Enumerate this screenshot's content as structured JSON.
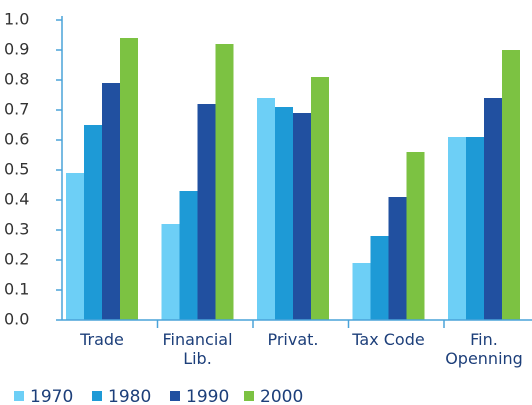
{
  "chart_data": {
    "type": "bar",
    "categories": [
      "Trade",
      "Financial Lib.",
      "Privat.",
      "Tax Code",
      "Fin. Openning"
    ],
    "series": [
      {
        "name": "1970",
        "color": "#6dcff6",
        "values": [
          0.49,
          0.32,
          0.74,
          0.19,
          0.61
        ]
      },
      {
        "name": "1980",
        "color": "#1e9ad6",
        "values": [
          0.65,
          0.43,
          0.71,
          0.28,
          0.61
        ]
      },
      {
        "name": "1990",
        "color": "#2150a0",
        "values": [
          0.79,
          0.72,
          0.69,
          0.41,
          0.74
        ]
      },
      {
        "name": "2000",
        "color": "#7cc242",
        "values": [
          0.94,
          0.92,
          0.81,
          0.56,
          0.9
        ]
      }
    ],
    "ylim": [
      0,
      1
    ],
    "yticks": [
      {
        "value": 0,
        "label": "0.0"
      },
      0.1,
      0.2,
      0.3,
      0.4,
      0.5,
      0.6,
      0.7,
      0.8,
      0.9,
      {
        "value": 1,
        "label": "1.0"
      }
    ],
    "grid": false,
    "legend": "bottom"
  }
}
